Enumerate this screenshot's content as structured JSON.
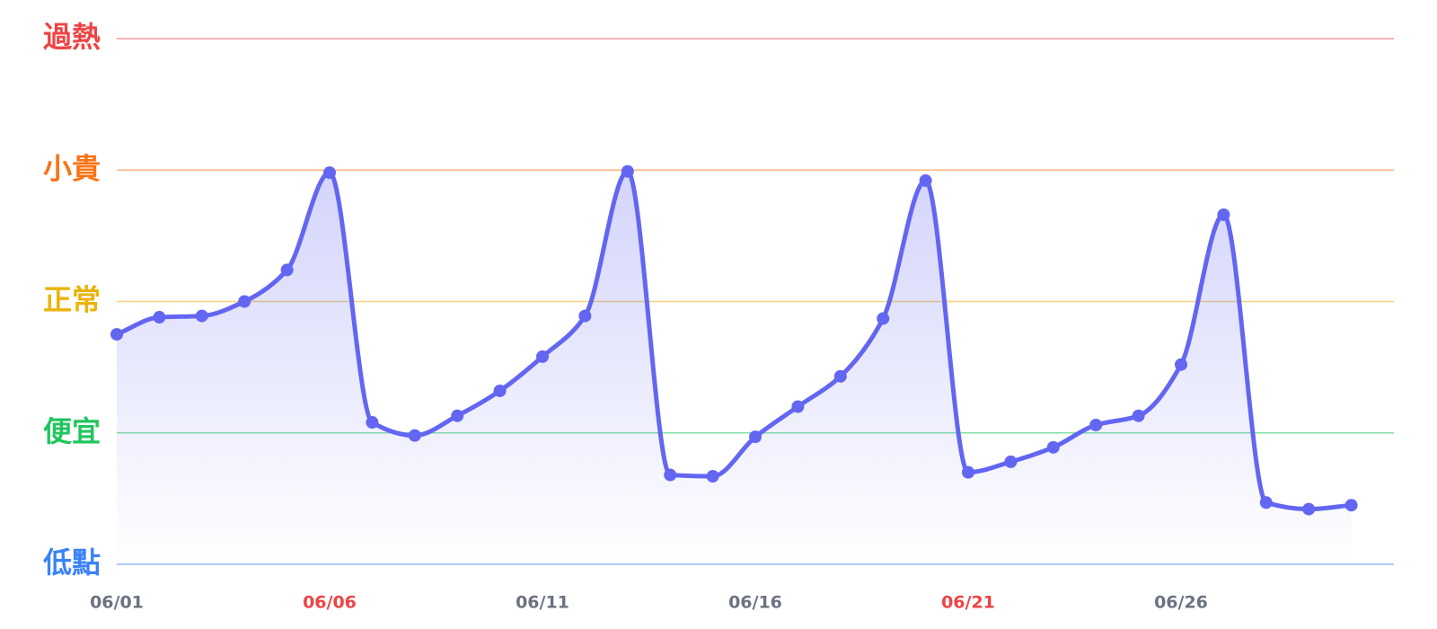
{
  "chart_data": {
    "type": "line",
    "categories": [
      "06/01",
      null,
      null,
      null,
      null,
      "06/06",
      null,
      null,
      null,
      null,
      "06/11",
      null,
      null,
      null,
      null,
      "06/16",
      null,
      null,
      null,
      null,
      "06/21",
      null,
      null,
      null,
      null,
      "06/26",
      null,
      null,
      null,
      null
    ],
    "category_colors": [
      "#6b7280",
      null,
      null,
      null,
      null,
      "#ef4444",
      null,
      null,
      null,
      null,
      "#6b7280",
      null,
      null,
      null,
      null,
      "#6b7280",
      null,
      null,
      null,
      null,
      "#ef4444",
      null,
      null,
      null,
      null,
      "#6b7280",
      null,
      null,
      null,
      null
    ],
    "series": [
      {
        "color": "#6366f1",
        "values": [
          1.75,
          1.88,
          1.89,
          2.0,
          2.24,
          2.98,
          1.08,
          0.98,
          1.13,
          1.32,
          1.58,
          1.89,
          2.99,
          0.68,
          0.67,
          0.97,
          1.2,
          1.43,
          1.87,
          2.92,
          0.7,
          0.78,
          0.89,
          1.06,
          1.13,
          1.52,
          2.66,
          0.47,
          0.42,
          0.45
        ]
      }
    ],
    "ylim": [
      0,
      4
    ],
    "yticks": [
      {
        "value": 0,
        "label": "低點"
      },
      {
        "value": 1,
        "label": "便宜"
      },
      {
        "value": 2,
        "label": "正常"
      },
      {
        "value": 3,
        "label": "小貴"
      },
      {
        "value": 4,
        "label": "過熱"
      }
    ],
    "ytick_colors": [
      "#3b82f6",
      "#22c55e",
      "#eab308",
      "#f97316",
      "#ef4444"
    ],
    "grid": true
  }
}
